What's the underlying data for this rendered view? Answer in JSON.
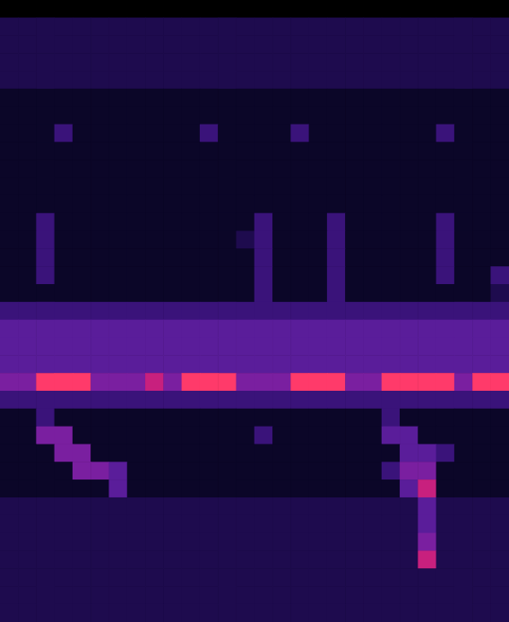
{
  "chart_data": {
    "type": "heatmap",
    "tick_labels": false,
    "color_range": [
      0,
      9
    ],
    "color": [
      "#000000",
      "#0b0628",
      "#1e0b4e",
      "#3a137a",
      "#5a1d9a",
      "#7a1fa0",
      "#a0208f",
      "#c8207e",
      "#e82a6e",
      "#ff3a6a"
    ],
    "cells": [
      [
        0,
        0,
        0,
        0,
        0,
        0,
        0,
        0,
        0,
        0,
        0,
        0,
        0,
        0,
        0,
        0,
        0,
        0,
        0,
        0,
        0,
        0,
        0,
        0,
        0,
        0,
        0,
        0
      ],
      [
        2,
        2,
        2,
        2,
        2,
        2,
        2,
        2,
        2,
        2,
        2,
        2,
        2,
        2,
        2,
        2,
        2,
        2,
        2,
        2,
        2,
        2,
        2,
        2,
        2,
        2,
        2,
        2
      ],
      [
        2,
        2,
        2,
        2,
        2,
        2,
        2,
        2,
        2,
        2,
        2,
        2,
        2,
        2,
        2,
        2,
        2,
        2,
        2,
        2,
        2,
        2,
        2,
        2,
        2,
        2,
        2,
        2
      ],
      [
        2,
        2,
        2,
        2,
        2,
        2,
        2,
        2,
        2,
        2,
        2,
        2,
        2,
        2,
        2,
        2,
        2,
        2,
        2,
        2,
        2,
        2,
        2,
        2,
        2,
        2,
        2,
        2
      ],
      [
        2,
        2,
        2,
        2,
        2,
        2,
        2,
        2,
        2,
        2,
        2,
        2,
        2,
        2,
        2,
        2,
        2,
        2,
        2,
        2,
        2,
        2,
        2,
        2,
        2,
        2,
        2,
        2
      ],
      [
        1,
        1,
        1,
        1,
        1,
        1,
        1,
        1,
        1,
        1,
        1,
        1,
        1,
        1,
        1,
        1,
        1,
        1,
        1,
        1,
        1,
        1,
        1,
        1,
        1,
        1,
        1,
        1
      ],
      [
        1,
        1,
        1,
        1,
        1,
        1,
        1,
        1,
        1,
        1,
        1,
        1,
        1,
        1,
        1,
        1,
        1,
        1,
        1,
        1,
        1,
        1,
        1,
        1,
        1,
        1,
        1,
        1
      ],
      [
        1,
        1,
        1,
        3,
        1,
        1,
        1,
        1,
        1,
        1,
        1,
        3,
        1,
        1,
        1,
        1,
        3,
        1,
        1,
        1,
        1,
        1,
        1,
        1,
        3,
        1,
        1,
        1
      ],
      [
        1,
        1,
        1,
        1,
        1,
        1,
        1,
        1,
        1,
        1,
        1,
        1,
        1,
        1,
        1,
        1,
        1,
        1,
        1,
        1,
        1,
        1,
        1,
        1,
        1,
        1,
        1,
        1
      ],
      [
        1,
        1,
        1,
        1,
        1,
        1,
        1,
        1,
        1,
        1,
        1,
        1,
        1,
        1,
        1,
        1,
        1,
        1,
        1,
        1,
        1,
        1,
        1,
        1,
        1,
        1,
        1,
        1
      ],
      [
        1,
        1,
        1,
        1,
        1,
        1,
        1,
        1,
        1,
        1,
        1,
        1,
        1,
        1,
        1,
        1,
        1,
        1,
        1,
        1,
        1,
        1,
        1,
        1,
        1,
        1,
        1,
        1
      ],
      [
        1,
        1,
        1,
        1,
        1,
        1,
        1,
        1,
        1,
        1,
        1,
        1,
        1,
        1,
        1,
        1,
        1,
        1,
        1,
        1,
        1,
        1,
        1,
        1,
        1,
        1,
        1,
        1
      ],
      [
        1,
        1,
        3,
        1,
        1,
        1,
        1,
        1,
        1,
        1,
        1,
        1,
        1,
        1,
        3,
        1,
        1,
        1,
        3,
        1,
        1,
        1,
        1,
        1,
        3,
        1,
        1,
        1
      ],
      [
        1,
        1,
        3,
        1,
        1,
        1,
        1,
        1,
        1,
        1,
        1,
        1,
        1,
        2,
        3,
        1,
        1,
        1,
        3,
        1,
        1,
        1,
        1,
        1,
        3,
        1,
        1,
        1
      ],
      [
        1,
        1,
        3,
        1,
        1,
        1,
        1,
        1,
        1,
        1,
        1,
        1,
        1,
        1,
        3,
        1,
        1,
        1,
        3,
        1,
        1,
        1,
        1,
        1,
        3,
        1,
        1,
        1
      ],
      [
        1,
        1,
        3,
        1,
        1,
        1,
        1,
        1,
        1,
        1,
        1,
        1,
        1,
        1,
        3,
        1,
        1,
        1,
        3,
        1,
        1,
        1,
        1,
        1,
        3,
        1,
        1,
        3
      ],
      [
        1,
        1,
        1,
        1,
        1,
        1,
        1,
        1,
        1,
        1,
        1,
        1,
        1,
        1,
        3,
        1,
        1,
        1,
        3,
        1,
        1,
        1,
        1,
        1,
        1,
        1,
        1,
        2
      ],
      [
        3,
        3,
        3,
        3,
        3,
        3,
        3,
        3,
        3,
        3,
        3,
        3,
        3,
        3,
        3,
        3,
        3,
        3,
        3,
        3,
        3,
        3,
        3,
        3,
        3,
        3,
        3,
        3
      ],
      [
        4,
        4,
        4,
        4,
        4,
        4,
        4,
        4,
        4,
        4,
        4,
        4,
        4,
        4,
        4,
        4,
        4,
        4,
        4,
        4,
        4,
        4,
        4,
        4,
        4,
        4,
        4,
        4
      ],
      [
        4,
        4,
        4,
        4,
        4,
        4,
        4,
        4,
        4,
        4,
        4,
        4,
        4,
        4,
        4,
        4,
        4,
        4,
        4,
        4,
        4,
        4,
        4,
        4,
        4,
        4,
        4,
        4
      ],
      [
        4,
        4,
        4,
        4,
        4,
        4,
        4,
        4,
        4,
        4,
        4,
        4,
        4,
        4,
        4,
        4,
        4,
        4,
        4,
        4,
        4,
        4,
        4,
        4,
        4,
        4,
        4,
        4
      ],
      [
        5,
        5,
        9,
        9,
        9,
        5,
        5,
        5,
        7,
        5,
        9,
        9,
        9,
        5,
        5,
        5,
        9,
        9,
        9,
        5,
        5,
        9,
        9,
        9,
        9,
        5,
        9,
        9
      ],
      [
        3,
        3,
        3,
        3,
        3,
        3,
        3,
        3,
        3,
        3,
        3,
        3,
        3,
        3,
        3,
        3,
        3,
        3,
        3,
        3,
        3,
        3,
        3,
        3,
        3,
        3,
        3,
        3
      ],
      [
        1,
        1,
        3,
        1,
        1,
        1,
        1,
        1,
        1,
        1,
        1,
        1,
        1,
        1,
        1,
        1,
        1,
        1,
        1,
        1,
        1,
        3,
        1,
        1,
        1,
        1,
        1,
        1
      ],
      [
        1,
        1,
        5,
        5,
        1,
        1,
        1,
        1,
        1,
        1,
        1,
        1,
        1,
        1,
        3,
        1,
        1,
        1,
        1,
        1,
        1,
        4,
        4,
        1,
        1,
        1,
        1,
        1
      ],
      [
        1,
        1,
        1,
        5,
        5,
        1,
        1,
        1,
        1,
        1,
        1,
        1,
        1,
        1,
        1,
        1,
        1,
        1,
        1,
        1,
        1,
        1,
        4,
        4,
        3,
        1,
        1,
        1
      ],
      [
        1,
        1,
        1,
        1,
        5,
        5,
        4,
        1,
        1,
        1,
        1,
        1,
        1,
        1,
        1,
        1,
        1,
        1,
        1,
        1,
        1,
        3,
        5,
        5,
        1,
        1,
        1,
        1
      ],
      [
        1,
        1,
        1,
        1,
        1,
        1,
        4,
        1,
        1,
        1,
        1,
        1,
        1,
        1,
        1,
        1,
        1,
        1,
        1,
        1,
        1,
        1,
        4,
        7,
        1,
        1,
        1,
        1
      ],
      [
        2,
        2,
        2,
        2,
        2,
        2,
        2,
        2,
        2,
        2,
        2,
        2,
        2,
        2,
        2,
        2,
        2,
        2,
        2,
        2,
        2,
        2,
        2,
        4,
        2,
        2,
        2,
        2
      ],
      [
        2,
        2,
        2,
        2,
        2,
        2,
        2,
        2,
        2,
        2,
        2,
        2,
        2,
        2,
        2,
        2,
        2,
        2,
        2,
        2,
        2,
        2,
        2,
        4,
        2,
        2,
        2,
        2
      ],
      [
        2,
        2,
        2,
        2,
        2,
        2,
        2,
        2,
        2,
        2,
        2,
        2,
        2,
        2,
        2,
        2,
        2,
        2,
        2,
        2,
        2,
        2,
        2,
        5,
        2,
        2,
        2,
        2
      ],
      [
        2,
        2,
        2,
        2,
        2,
        2,
        2,
        2,
        2,
        2,
        2,
        2,
        2,
        2,
        2,
        2,
        2,
        2,
        2,
        2,
        2,
        2,
        2,
        7,
        2,
        2,
        2,
        2
      ],
      [
        2,
        2,
        2,
        2,
        2,
        2,
        2,
        2,
        2,
        2,
        2,
        2,
        2,
        2,
        2,
        2,
        2,
        2,
        2,
        2,
        2,
        2,
        2,
        2,
        2,
        2,
        2,
        2
      ],
      [
        2,
        2,
        2,
        2,
        2,
        2,
        2,
        2,
        2,
        2,
        2,
        2,
        2,
        2,
        2,
        2,
        2,
        2,
        2,
        2,
        2,
        2,
        2,
        2,
        2,
        2,
        2,
        2
      ],
      [
        2,
        2,
        2,
        2,
        2,
        2,
        2,
        2,
        2,
        2,
        2,
        2,
        2,
        2,
        2,
        2,
        2,
        2,
        2,
        2,
        2,
        2,
        2,
        2,
        2,
        2,
        2,
        2
      ]
    ]
  }
}
